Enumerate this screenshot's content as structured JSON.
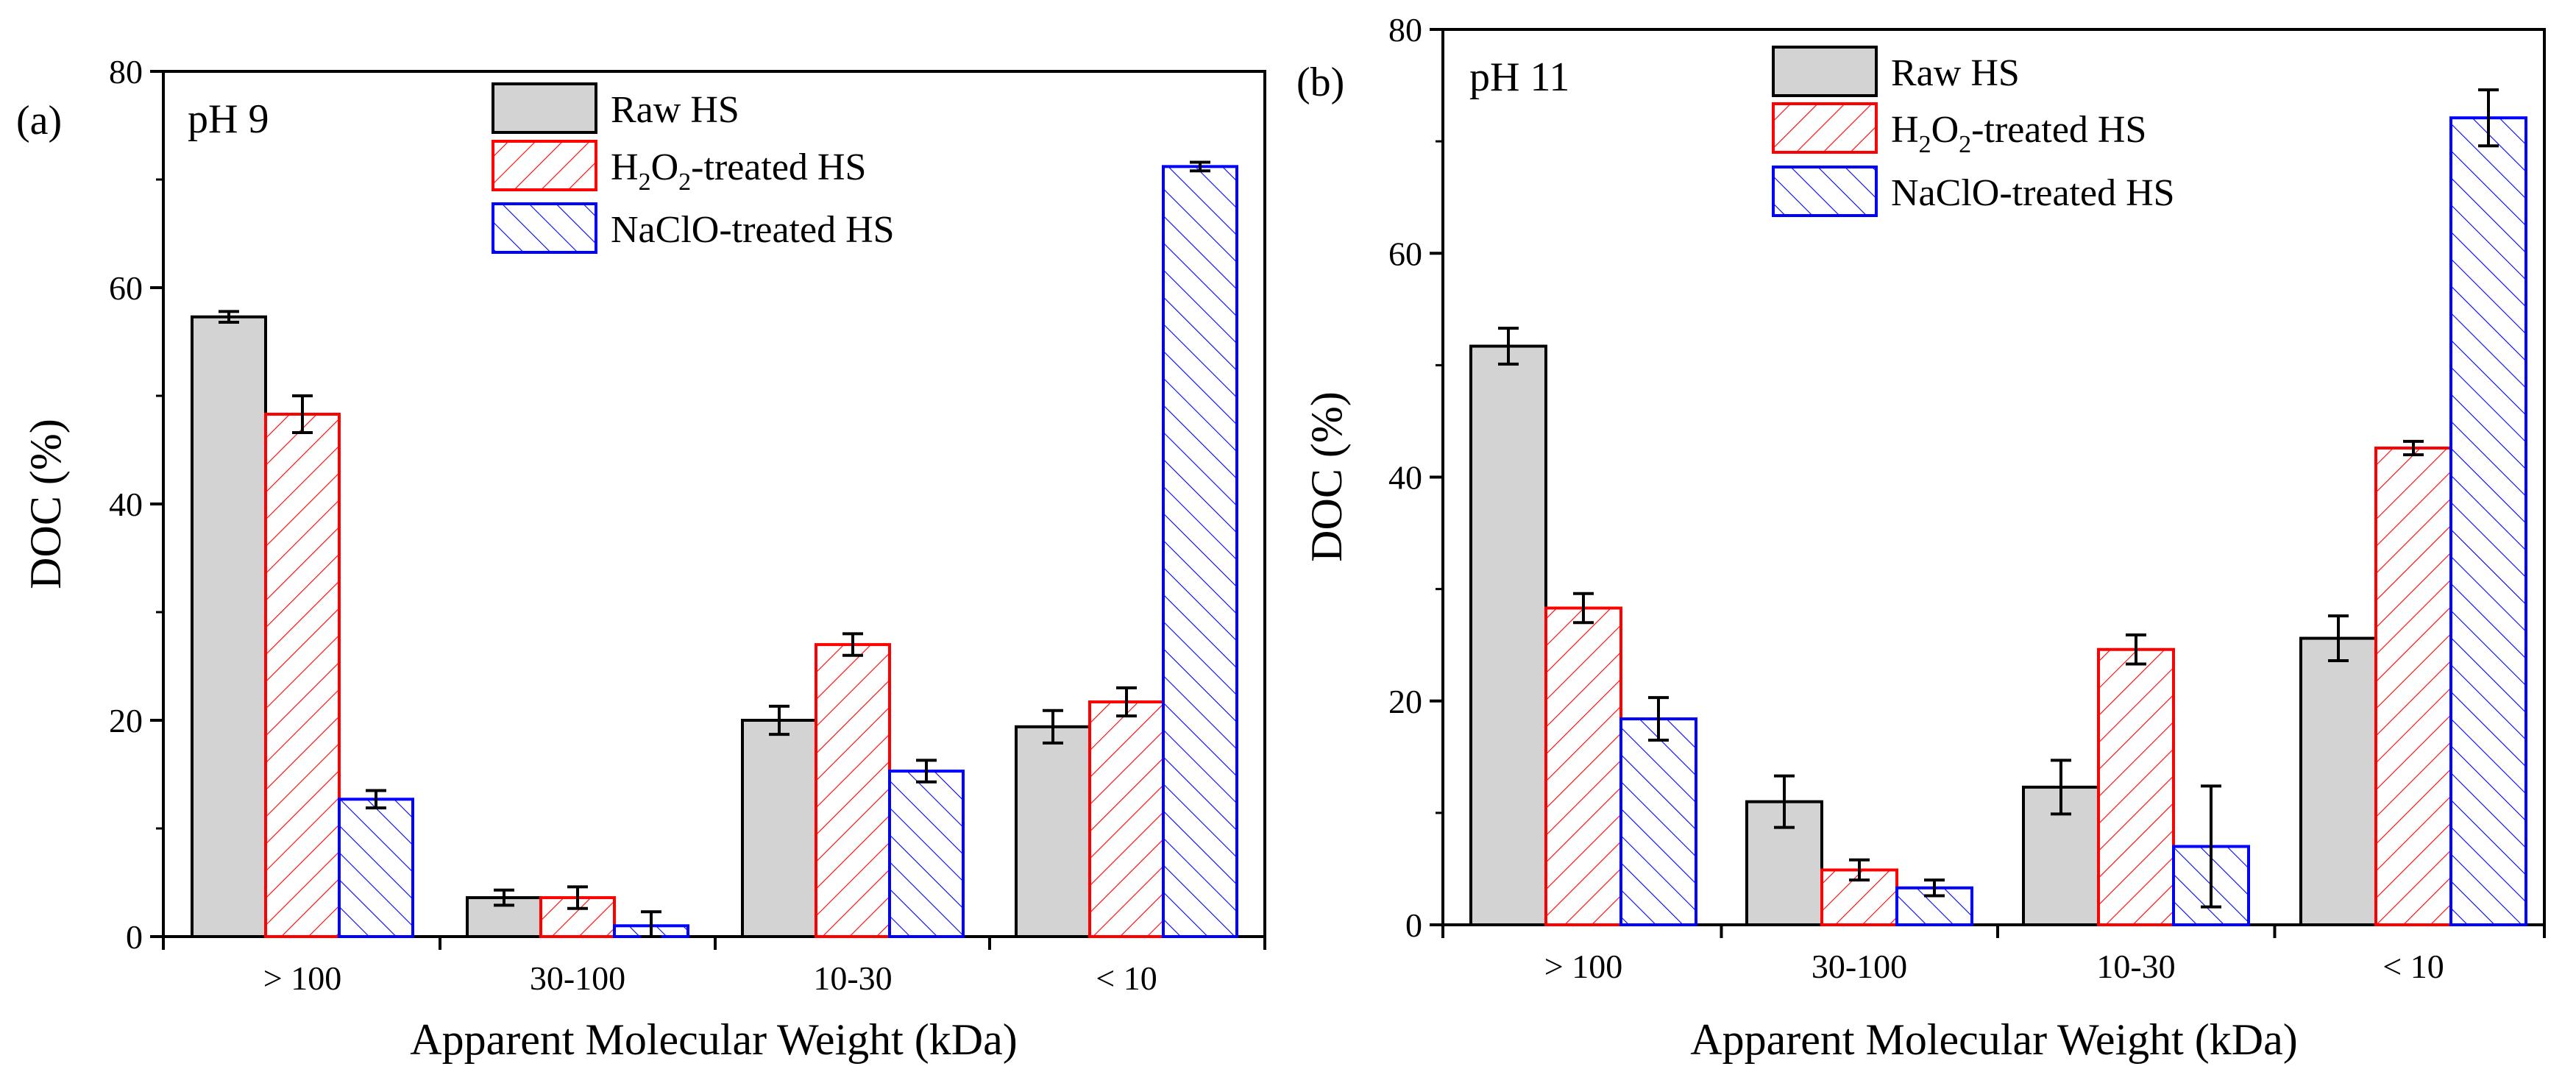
{
  "chart_data": [
    {
      "type": "bar",
      "panel_label": "(a)",
      "annotation": "pH 9",
      "xlabel": "Apparent Molecular Weight (kDa)",
      "ylabel": "DOC (%)",
      "ylim": [
        0,
        80
      ],
      "yticks": [
        0,
        20,
        40,
        60,
        80
      ],
      "categories": [
        "> 100",
        "30-100",
        "10-30",
        "< 10"
      ],
      "legend_position": "top",
      "series": [
        {
          "name": "Raw HS",
          "values": [
            57.3,
            3.6,
            20.0,
            19.4
          ],
          "errors": [
            0.5,
            0.7,
            1.3,
            1.5
          ]
        },
        {
          "name": "H2O2-treated HS",
          "values": [
            48.3,
            3.6,
            27.0,
            21.7
          ],
          "errors": [
            1.7,
            1.0,
            1.0,
            1.3
          ]
        },
        {
          "name": "NaClO-treated HS",
          "values": [
            12.7,
            1.0,
            15.3,
            71.2
          ],
          "errors": [
            0.8,
            1.3,
            1.0,
            0.4
          ]
        }
      ]
    },
    {
      "type": "bar",
      "panel_label": "(b)",
      "annotation": "pH 11",
      "xlabel": "Apparent Molecular Weight (kDa)",
      "ylabel": "DOC (%)",
      "ylim": [
        0,
        80
      ],
      "yticks": [
        0,
        20,
        40,
        60,
        80
      ],
      "categories": [
        "> 100",
        "30-100",
        "10-30",
        "< 10"
      ],
      "legend_position": "top",
      "series": [
        {
          "name": "Raw HS",
          "values": [
            51.7,
            11.0,
            12.3,
            25.6
          ],
          "errors": [
            1.6,
            2.3,
            2.4,
            2.0
          ]
        },
        {
          "name": "H2O2-treated HS",
          "values": [
            28.3,
            4.9,
            24.6,
            42.6
          ],
          "errors": [
            1.3,
            0.9,
            1.3,
            0.6
          ]
        },
        {
          "name": "NaClO-treated HS",
          "values": [
            18.4,
            3.3,
            7.0,
            72.1
          ],
          "errors": [
            1.9,
            0.7,
            5.4,
            2.5
          ]
        }
      ]
    }
  ],
  "legend_labels": [
    {
      "base": "Raw HS"
    },
    {
      "pre": "H",
      "sub1": "2",
      "mid": "O",
      "sub2": "2",
      "post": "-treated HS"
    },
    {
      "base": "NaClO-treated HS"
    }
  ],
  "colors": {
    "raw_fill": "#d3d3d3",
    "raw_edge": "#000000",
    "h2o2_edge": "#ff0000",
    "naclo_edge": "#0000ff"
  }
}
